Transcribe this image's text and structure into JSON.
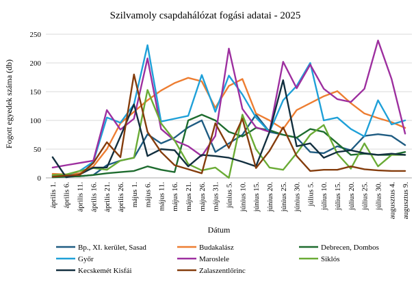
{
  "chart_data": {
    "type": "line",
    "title": "Szilvamoly csapdahálózat fogási adatai - 2025",
    "xlabel": "Dátum",
    "ylabel": "Fogott egyedek száma (db)",
    "ylim": [
      0,
      250
    ],
    "yticks": [
      0,
      50,
      100,
      150,
      200,
      250
    ],
    "grid": "horizontal",
    "legend_position": "bottom",
    "categories": [
      "április 1.",
      "április 6.",
      "április 11.",
      "április 16.",
      "április 21.",
      "április 26.",
      "május 1.",
      "május 6.",
      "május 11.",
      "május 16.",
      "május 21.",
      "május 26.",
      "május 31.",
      "június 5.",
      "június 10.",
      "június 15.",
      "június 20.",
      "június 25.",
      "június 30.",
      "július 5.",
      "július 10.",
      "július 15.",
      "július 20.",
      "július 25.",
      "július 30.",
      "augusztus 4.",
      "augusztus 9."
    ],
    "series": [
      {
        "name": "Bp., XI. kerület, Sasad",
        "color": "#1f5c82",
        "values": [
          4,
          2,
          3,
          5,
          22,
          30,
          35,
          76,
          60,
          70,
          88,
          100,
          45,
          60,
          75,
          110,
          80,
          75,
          70,
          45,
          43,
          55,
          48,
          73,
          76,
          73,
          57
        ]
      },
      {
        "name": "Budakalász",
        "color": "#ed7d31",
        "values": [
          7,
          6,
          8,
          20,
          50,
          95,
          115,
          135,
          152,
          165,
          174,
          168,
          122,
          160,
          172,
          112,
          100,
          85,
          118,
          130,
          142,
          151,
          130,
          112,
          104,
          97,
          87
        ]
      },
      {
        "name": "Debrecen, Dombos",
        "color": "#1d6b2e",
        "values": [
          1,
          2,
          3,
          5,
          8,
          10,
          12,
          20,
          14,
          10,
          100,
          110,
          100,
          80,
          72,
          87,
          83,
          75,
          70,
          85,
          80,
          60,
          40,
          42,
          40,
          40,
          45
        ]
      },
      {
        "name": "Győr",
        "color": "#1ea0d8",
        "values": [
          2,
          5,
          12,
          28,
          105,
          96,
          128,
          231,
          98,
          103,
          108,
          179,
          115,
          178,
          145,
          105,
          80,
          135,
          160,
          200,
          100,
          105,
          85,
          72,
          135,
          93,
          100
        ]
      },
      {
        "name": "Maroslele",
        "color": "#9d2f9f",
        "values": [
          18,
          22,
          26,
          30,
          118,
          84,
          103,
          208,
          85,
          65,
          55,
          38,
          73,
          225,
          120,
          88,
          80,
          202,
          156,
          197,
          155,
          137,
          132,
          155,
          239,
          172,
          77
        ]
      },
      {
        "name": "Siklós",
        "color": "#6aab35",
        "values": [
          5,
          6,
          12,
          17,
          14,
          30,
          35,
          153,
          95,
          65,
          24,
          13,
          18,
          0,
          110,
          50,
          18,
          14,
          43,
          75,
          92,
          42,
          16,
          60,
          20,
          40,
          40
        ]
      },
      {
        "name": "Kecskemét Kisfái",
        "color": "#122f3f",
        "values": [
          36,
          1,
          6,
          18,
          18,
          72,
          128,
          38,
          50,
          48,
          20,
          40,
          38,
          35,
          28,
          20,
          80,
          170,
          55,
          60,
          35,
          45,
          48,
          43,
          40,
          42,
          40
        ]
      },
      {
        "name": "Zalaszentlőrinc",
        "color": "#843c0c",
        "values": [
          2,
          4,
          5,
          26,
          62,
          36,
          180,
          80,
          45,
          22,
          15,
          8,
          95,
          52,
          103,
          17,
          47,
          88,
          38,
          12,
          14,
          14,
          20,
          15,
          13,
          12,
          12
        ]
      }
    ]
  }
}
